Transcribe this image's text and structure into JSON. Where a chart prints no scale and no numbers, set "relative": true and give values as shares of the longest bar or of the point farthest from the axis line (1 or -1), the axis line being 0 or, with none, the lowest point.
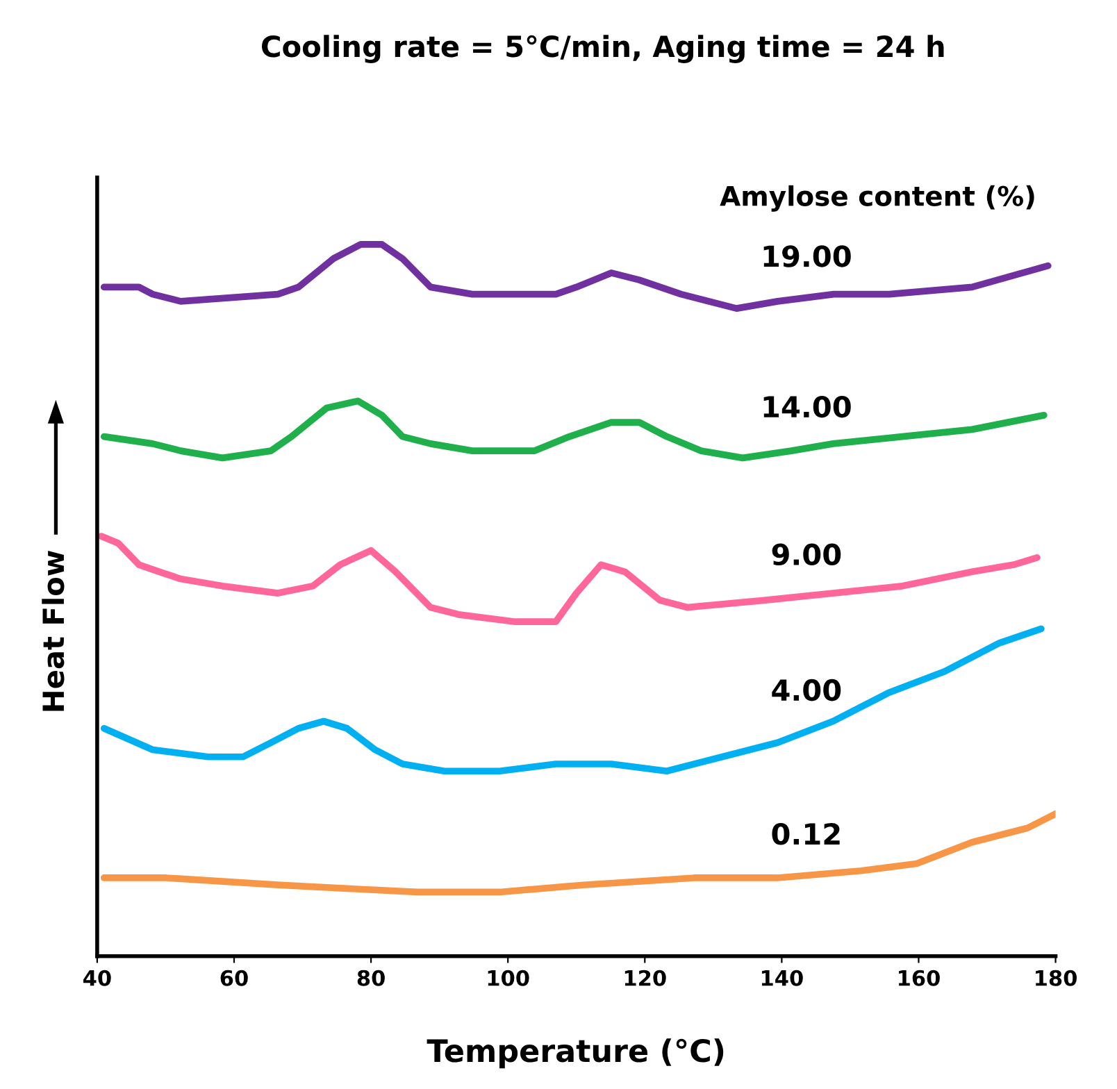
{
  "chart_data": {
    "type": "line",
    "title": "Cooling rate = 5°C/min, Aging time = 24 h",
    "xlabel": "Temperature (°C)",
    "ylabel": "Heat Flow",
    "legend_title": "Amylose content (%)",
    "relative": true,
    "xlim": [
      40,
      180
    ],
    "xticks": [
      40,
      60,
      80,
      100,
      120,
      140,
      160,
      180
    ],
    "grid": false,
    "legend": false,
    "marker": "none",
    "line_style": "solid",
    "series": [
      {
        "name": "19.00",
        "color": "#7030a0",
        "x": [
          41.0,
          46.1,
          48.1,
          52.2,
          66.4,
          69.4,
          74.5,
          78.5,
          81.6,
          84.6,
          88.7,
          94.8,
          107.0,
          110.0,
          115.1,
          119.2,
          125.3,
          133.4,
          139.4,
          147.6,
          155.7,
          167.8,
          178.9
        ],
        "values": [
          0.94,
          0.94,
          0.93,
          0.92,
          0.93,
          0.94,
          0.98,
          1.0,
          1.0,
          0.98,
          0.94,
          0.93,
          0.93,
          0.94,
          0.96,
          0.95,
          0.93,
          0.91,
          0.92,
          0.93,
          0.93,
          0.94,
          0.97
        ]
      },
      {
        "name": "14.00",
        "color": "#1fb04c",
        "x": [
          41.0,
          48.1,
          52.2,
          58.3,
          65.4,
          68.4,
          73.5,
          78.1,
          81.6,
          84.6,
          88.7,
          94.8,
          103.9,
          109.0,
          115.1,
          119.2,
          123.2,
          128.2,
          134.3,
          141.4,
          147.5,
          157.6,
          167.8,
          178.3
        ],
        "values": [
          0.73,
          0.72,
          0.71,
          0.7,
          0.71,
          0.73,
          0.77,
          0.78,
          0.76,
          0.73,
          0.72,
          0.71,
          0.71,
          0.73,
          0.75,
          0.75,
          0.73,
          0.71,
          0.7,
          0.71,
          0.72,
          0.73,
          0.74,
          0.76
        ]
      },
      {
        "name": "9.00",
        "color": "#ff6699",
        "x": [
          40.6,
          43.1,
          46.1,
          49.1,
          52.2,
          58.3,
          66.4,
          71.5,
          75.5,
          80.0,
          83.6,
          88.7,
          92.8,
          100.9,
          107.0,
          110.0,
          113.6,
          117.1,
          122.2,
          126.2,
          137.4,
          147.5,
          157.6,
          167.8,
          173.9,
          177.3
        ],
        "values": [
          0.59,
          0.58,
          0.55,
          0.54,
          0.53,
          0.52,
          0.51,
          0.52,
          0.55,
          0.57,
          0.54,
          0.49,
          0.48,
          0.47,
          0.47,
          0.51,
          0.55,
          0.54,
          0.5,
          0.49,
          0.5,
          0.51,
          0.52,
          0.54,
          0.55,
          0.56
        ]
      },
      {
        "name": "4.00",
        "color": "#00b0f0",
        "x": [
          41.0,
          48.1,
          56.2,
          61.3,
          65.4,
          69.4,
          73.1,
          76.5,
          80.6,
          84.6,
          90.7,
          98.8,
          107.0,
          115.1,
          123.2,
          131.3,
          139.4,
          147.5,
          155.6,
          163.8,
          171.8,
          177.9
        ],
        "values": [
          0.32,
          0.29,
          0.28,
          0.28,
          0.3,
          0.32,
          0.33,
          0.32,
          0.29,
          0.27,
          0.26,
          0.26,
          0.27,
          0.27,
          0.26,
          0.28,
          0.3,
          0.33,
          0.37,
          0.4,
          0.44,
          0.46
        ]
      },
      {
        "name": "0.12",
        "color": "#f79646",
        "x": [
          41.0,
          50.1,
          66.4,
          86.7,
          98.8,
          111.0,
          127.2,
          139.4,
          151.6,
          159.7,
          167.8,
          175.9,
          180.0
        ],
        "values": [
          0.11,
          0.11,
          0.1,
          0.09,
          0.09,
          0.1,
          0.11,
          0.11,
          0.12,
          0.13,
          0.16,
          0.18,
          0.2
        ]
      }
    ]
  }
}
